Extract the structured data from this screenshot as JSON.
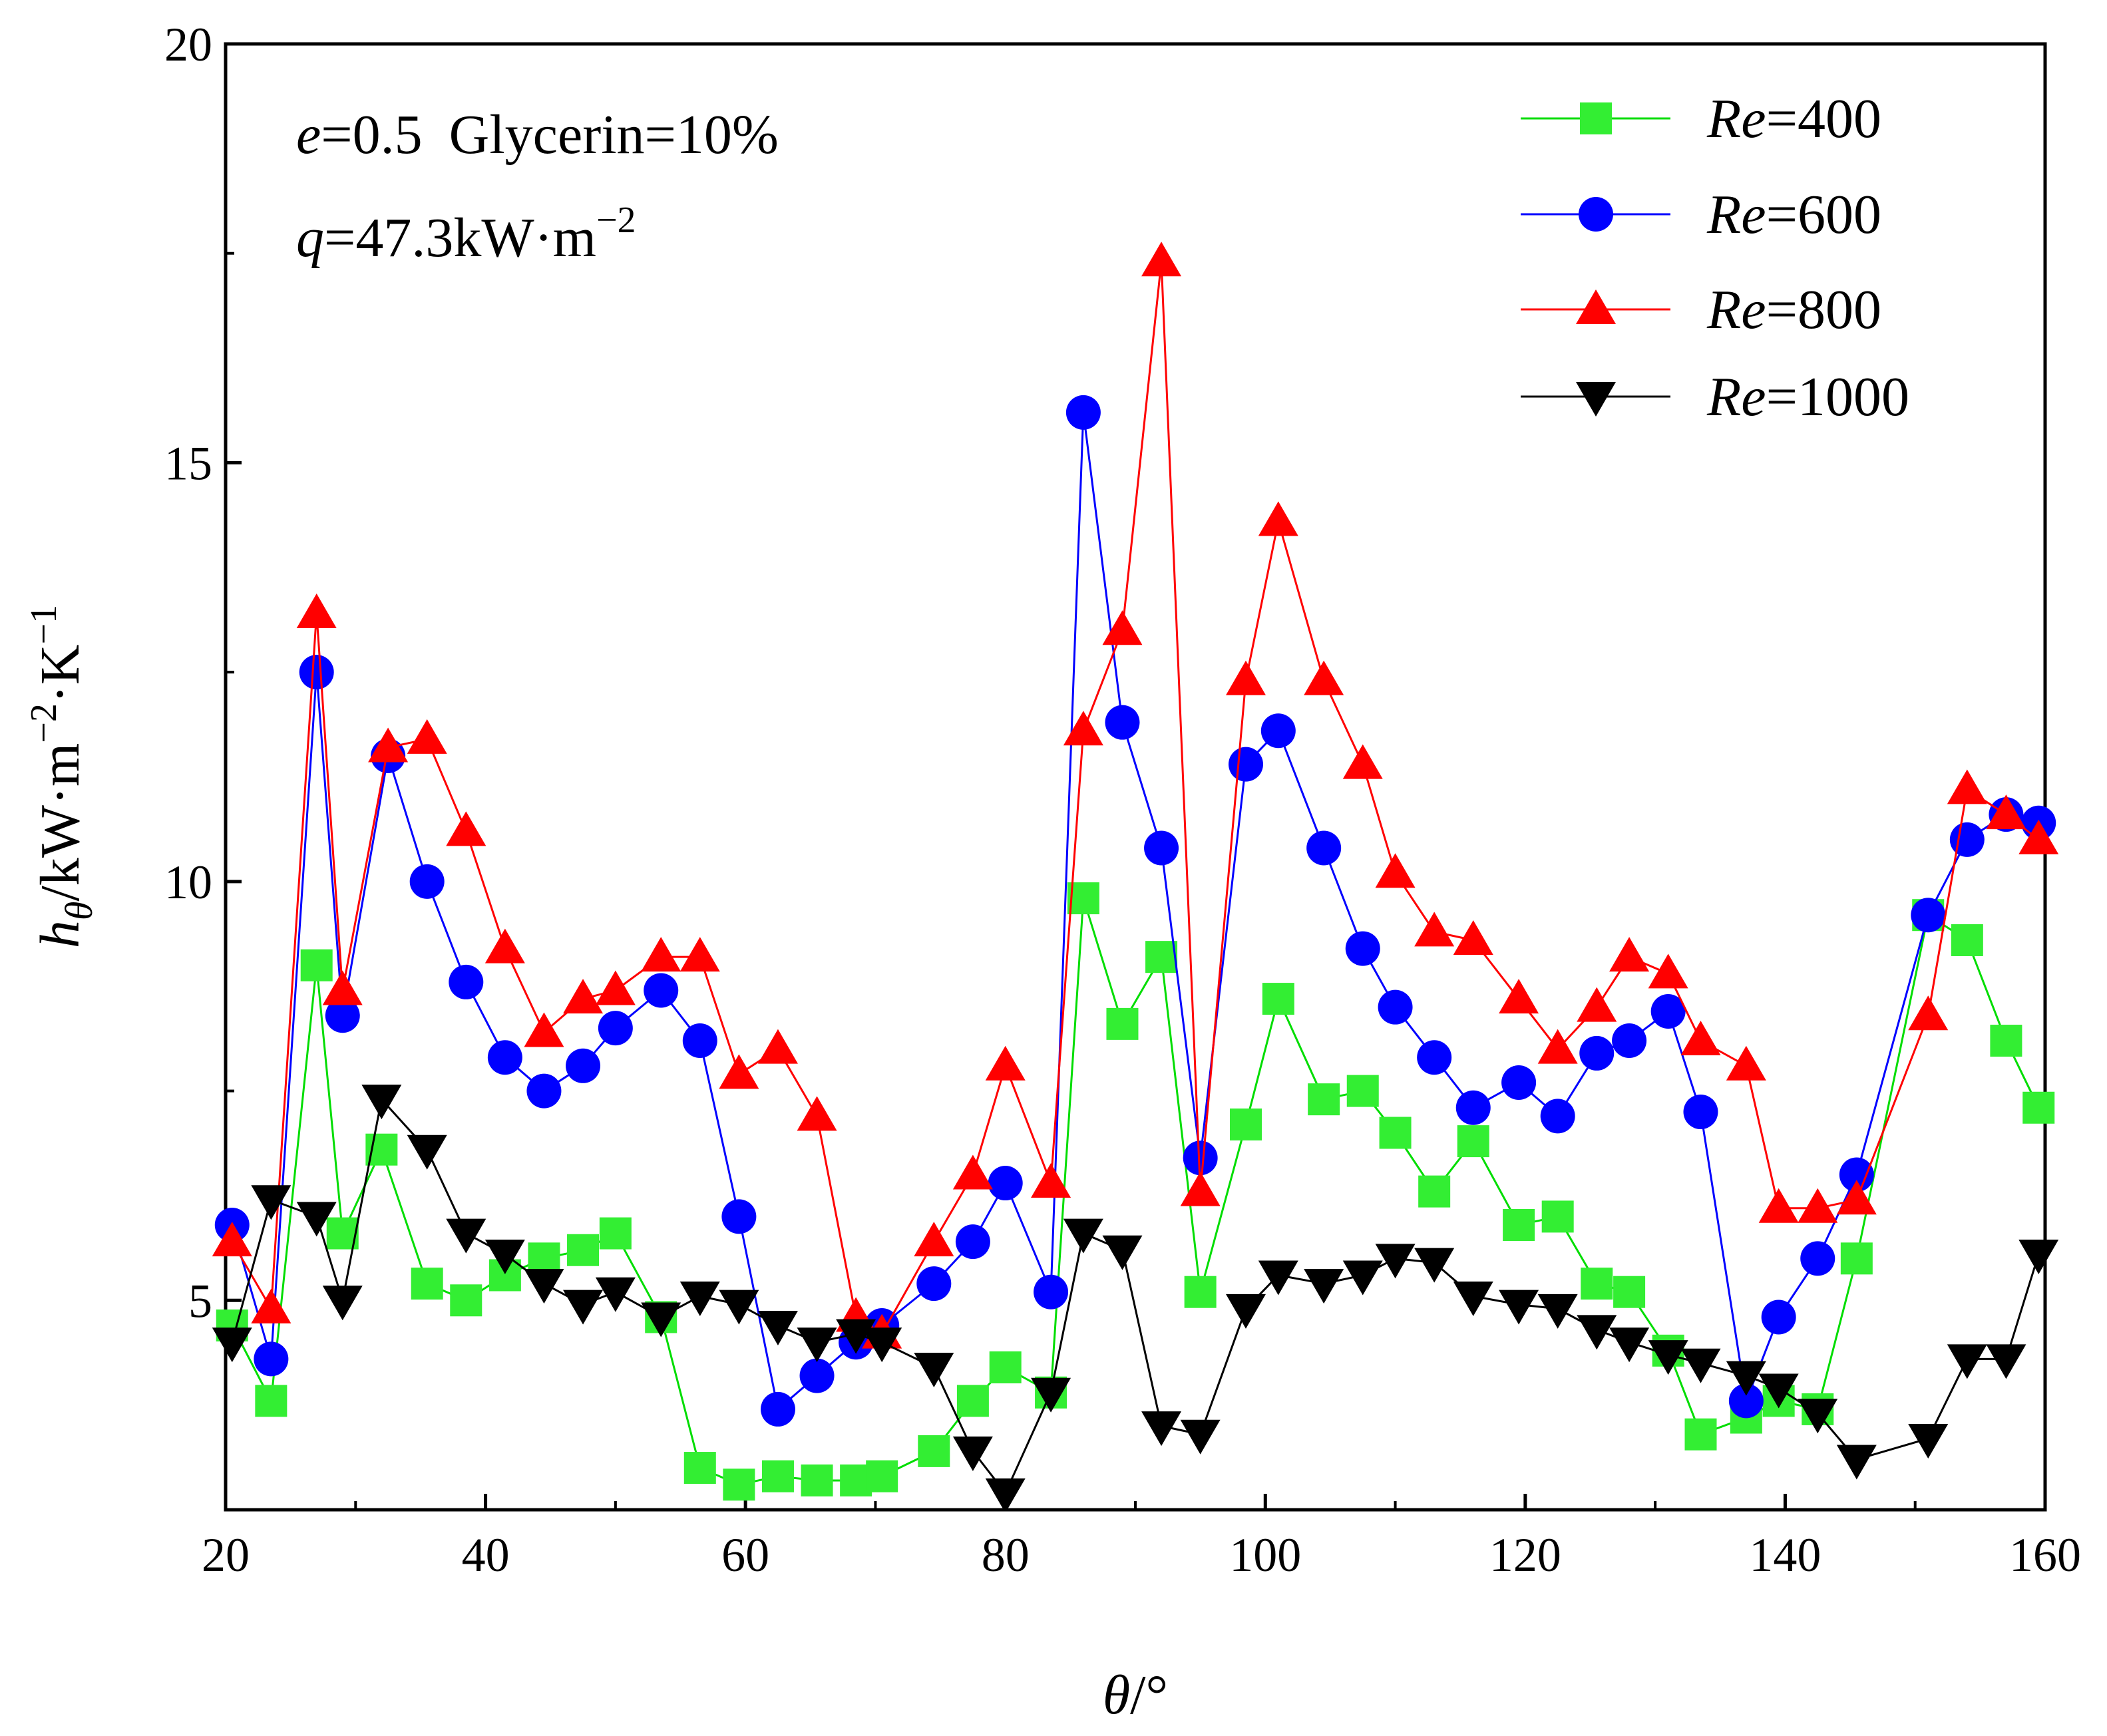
{
  "chart_data": {
    "type": "line",
    "xlabel": "θ/°",
    "ylabel": "hθ/kW·m−2·K−1",
    "ylabel_parts": {
      "sym": "h",
      "sub": "θ",
      "unit": "/kW·m",
      "exp1": "−2",
      "mid": "·K",
      "exp2": "−1"
    },
    "xlim": [
      20,
      160
    ],
    "ylim": [
      2.5,
      20
    ],
    "xticks": [
      20,
      40,
      60,
      80,
      100,
      120,
      140,
      160
    ],
    "yticks": [
      5,
      10,
      15,
      20
    ],
    "x_tick_labels": [
      "20",
      "40",
      "60",
      "80",
      "100",
      "120",
      "140",
      "160"
    ],
    "y_tick_labels": [
      "5",
      "10",
      "15",
      "20"
    ],
    "grid": false,
    "legend_position": "top-right",
    "annotations": {
      "line1": {
        "e_sym": "e",
        "e_val": "=0.5",
        "glycerin": "Glycerin=10%"
      },
      "line2": {
        "q_sym": "q",
        "q_val": "=47.3kW·m",
        "q_exp": "−2"
      }
    },
    "series": [
      {
        "name": "Re=400",
        "re_sym": "Re",
        "re_val": "=400",
        "color": "#00dd00",
        "marker_color": "#33ee33",
        "marker": "square",
        "x": [
          20.5,
          23.5,
          27,
          29,
          32,
          35.5,
          38.5,
          41.5,
          44.5,
          47.5,
          50,
          53.5,
          56.5,
          59.5,
          62.5,
          65.5,
          68.5,
          70.5,
          74.5,
          77.5,
          80,
          83.5,
          86,
          89,
          92,
          95,
          98.5,
          101,
          104.5,
          107.5,
          110,
          113,
          116,
          119.5,
          122.5,
          125.5,
          128,
          131,
          133.5,
          137,
          139.5,
          142.5,
          145.5,
          151,
          154,
          157,
          159.5
        ],
        "y": [
          4.7,
          3.8,
          9.0,
          5.8,
          6.8,
          5.2,
          5.0,
          5.3,
          5.5,
          5.6,
          5.8,
          4.8,
          3.0,
          2.8,
          2.9,
          2.85,
          2.85,
          2.9,
          3.2,
          3.8,
          4.2,
          3.9,
          9.8,
          8.3,
          9.1,
          5.1,
          7.1,
          8.6,
          7.4,
          7.5,
          7.0,
          6.3,
          6.9,
          5.9,
          6.0,
          5.2,
          5.1,
          4.4,
          3.4,
          3.6,
          3.8,
          3.7,
          5.5,
          9.6,
          9.3,
          8.1,
          7.3
        ]
      },
      {
        "name": "Re=600",
        "re_sym": "Re",
        "re_val": "=600",
        "color": "#0000ff",
        "marker_color": "#0000ff",
        "marker": "circle",
        "x": [
          20.5,
          23.5,
          27,
          29,
          32.5,
          35.5,
          38.5,
          41.5,
          44.5,
          47.5,
          50,
          53.5,
          56.5,
          59.5,
          62.5,
          65.5,
          68.5,
          70.5,
          74.5,
          77.5,
          80,
          83.5,
          86,
          89,
          92,
          95,
          98.5,
          101,
          104.5,
          107.5,
          110,
          113,
          116,
          119.5,
          122.5,
          125.5,
          128,
          131,
          133.5,
          137,
          139.5,
          142.5,
          145.5,
          151,
          154,
          157,
          159.5
        ],
        "y": [
          5.9,
          4.3,
          12.5,
          8.4,
          11.5,
          10.0,
          8.8,
          7.9,
          7.5,
          7.8,
          8.25,
          8.7,
          8.1,
          6.0,
          3.7,
          4.1,
          4.5,
          4.7,
          5.2,
          5.7,
          6.4,
          5.1,
          15.6,
          11.9,
          10.4,
          6.7,
          11.4,
          11.8,
          10.4,
          9.2,
          8.5,
          7.9,
          7.3,
          7.6,
          7.2,
          7.95,
          8.1,
          8.45,
          7.25,
          3.8,
          4.8,
          5.5,
          6.5,
          9.6,
          10.5,
          10.8,
          10.7
        ]
      },
      {
        "name": "Re=800",
        "re_sym": "Re",
        "re_val": "=800",
        "color": "#ff0000",
        "marker_color": "#ff0000",
        "marker": "triangle-up",
        "x": [
          20.5,
          23.5,
          27,
          29,
          32.5,
          35.5,
          38.5,
          41.5,
          44.5,
          47.5,
          50,
          53.5,
          56.5,
          59.5,
          62.5,
          65.5,
          68.5,
          70.5,
          74.5,
          77.5,
          80,
          83.5,
          86,
          89,
          92,
          95,
          98.5,
          101,
          104.5,
          107.5,
          110,
          113,
          116,
          119.5,
          122.5,
          125.5,
          128,
          131,
          133.5,
          137,
          139.5,
          142.5,
          145.5,
          151,
          154,
          157,
          159.5
        ],
        "y": [
          5.7,
          4.9,
          13.2,
          8.7,
          11.6,
          11.7,
          10.6,
          9.2,
          8.2,
          8.6,
          8.7,
          9.1,
          9.1,
          7.7,
          8.0,
          7.2,
          4.8,
          4.6,
          5.7,
          6.5,
          7.8,
          6.4,
          11.8,
          13.0,
          17.4,
          6.3,
          12.4,
          14.3,
          12.4,
          11.4,
          10.1,
          9.4,
          9.3,
          8.6,
          8.0,
          8.5,
          9.1,
          8.9,
          8.1,
          7.8,
          6.1,
          6.1,
          6.2,
          8.4,
          11.1,
          10.8,
          10.5
        ]
      },
      {
        "name": "Re=1000",
        "re_sym": "Re",
        "re_val": "=1000",
        "color": "#000000",
        "marker_color": "#000000",
        "marker": "triangle-down",
        "x": [
          20.5,
          23.5,
          27,
          29,
          32,
          35.5,
          38.5,
          41.5,
          44.5,
          47.5,
          50,
          53.5,
          56.5,
          59.5,
          62.5,
          65.5,
          68.5,
          70.5,
          74.5,
          77.5,
          80,
          83.5,
          86,
          89,
          92,
          95,
          98.5,
          101,
          104.5,
          107.5,
          110,
          113,
          116,
          119.5,
          122.5,
          125.5,
          128,
          131,
          133.5,
          137,
          139.5,
          142.5,
          145.5,
          151,
          154,
          157,
          159.5
        ],
        "y": [
          4.5,
          6.2,
          6.0,
          5.0,
          7.4,
          6.8,
          5.8,
          5.55,
          5.2,
          4.95,
          5.1,
          4.8,
          5.05,
          4.95,
          4.7,
          4.5,
          4.6,
          4.5,
          4.2,
          3.2,
          2.7,
          3.9,
          5.8,
          5.6,
          3.5,
          3.4,
          4.9,
          5.3,
          5.2,
          5.3,
          5.5,
          5.45,
          5.05,
          4.95,
          4.9,
          4.65,
          4.5,
          4.35,
          4.25,
          4.1,
          3.95,
          3.65,
          3.1,
          3.35,
          4.3,
          4.3,
          5.55
        ]
      }
    ]
  }
}
